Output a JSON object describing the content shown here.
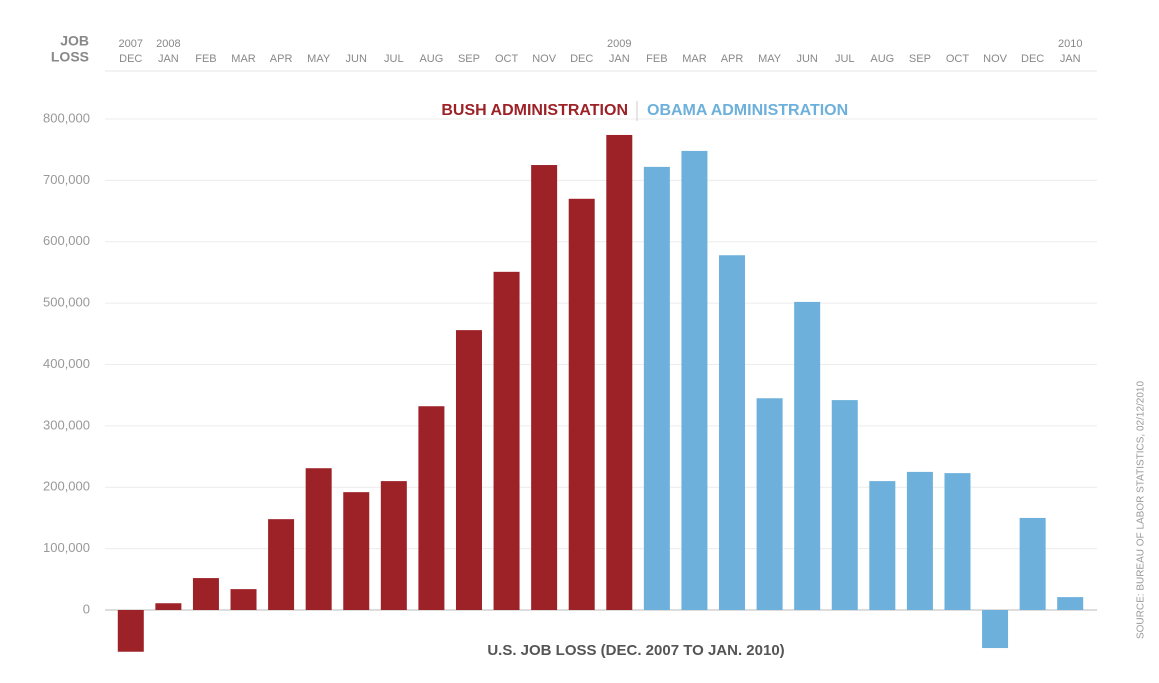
{
  "chart_data": {
    "type": "bar",
    "title": "U.S. JOB LOSS (DEC. 2007 TO JAN. 2010)",
    "y_label": [
      "JOB",
      "LOSS"
    ],
    "source": "SOURCE: BUREAU OF LABOR STATISTICS, 02/12/2010",
    "categories": [
      "DEC",
      "JAN",
      "FEB",
      "MAR",
      "APR",
      "MAY",
      "JUN",
      "JUL",
      "AUG",
      "SEP",
      "OCT",
      "NOV",
      "DEC",
      "JAN",
      "FEB",
      "MAR",
      "APR",
      "MAY",
      "JUN",
      "JUL",
      "AUG",
      "SEP",
      "OCT",
      "NOV",
      "DEC",
      "JAN"
    ],
    "years": [
      "2007",
      "2008",
      null,
      null,
      null,
      null,
      null,
      null,
      null,
      null,
      null,
      null,
      null,
      "2009",
      null,
      null,
      null,
      null,
      null,
      null,
      null,
      null,
      null,
      null,
      null,
      "2010"
    ],
    "series": [
      {
        "name": "BUSH ADMINISTRATION",
        "color": "#9c2227",
        "values": [
          -68000,
          11000,
          52000,
          34000,
          148000,
          231000,
          192000,
          210000,
          332000,
          456000,
          551000,
          725000,
          670000,
          774000,
          null,
          null,
          null,
          null,
          null,
          null,
          null,
          null,
          null,
          null,
          null,
          null
        ]
      },
      {
        "name": "OBAMA ADMINISTRATION",
        "color": "#6cb0db",
        "values": [
          null,
          null,
          null,
          null,
          null,
          null,
          null,
          null,
          null,
          null,
          null,
          null,
          null,
          null,
          722000,
          748000,
          578000,
          345000,
          502000,
          342000,
          210000,
          225000,
          223000,
          -62000,
          150000,
          21000
        ]
      }
    ],
    "ylim": [
      -80000,
      800000
    ],
    "yticks": [
      0,
      {
        "value": 100000,
        "label": "100,000"
      },
      {
        "value": 200000,
        "label": "200,000"
      },
      {
        "value": 300000,
        "label": "300,000"
      },
      {
        "value": 400000,
        "label": "400,000"
      },
      {
        "value": 500000,
        "label": "500,000"
      },
      {
        "value": 600000,
        "label": "600,000"
      },
      {
        "value": 700000,
        "label": "700,000"
      },
      {
        "value": 800000,
        "label": "800,000"
      }
    ],
    "grid": true
  }
}
